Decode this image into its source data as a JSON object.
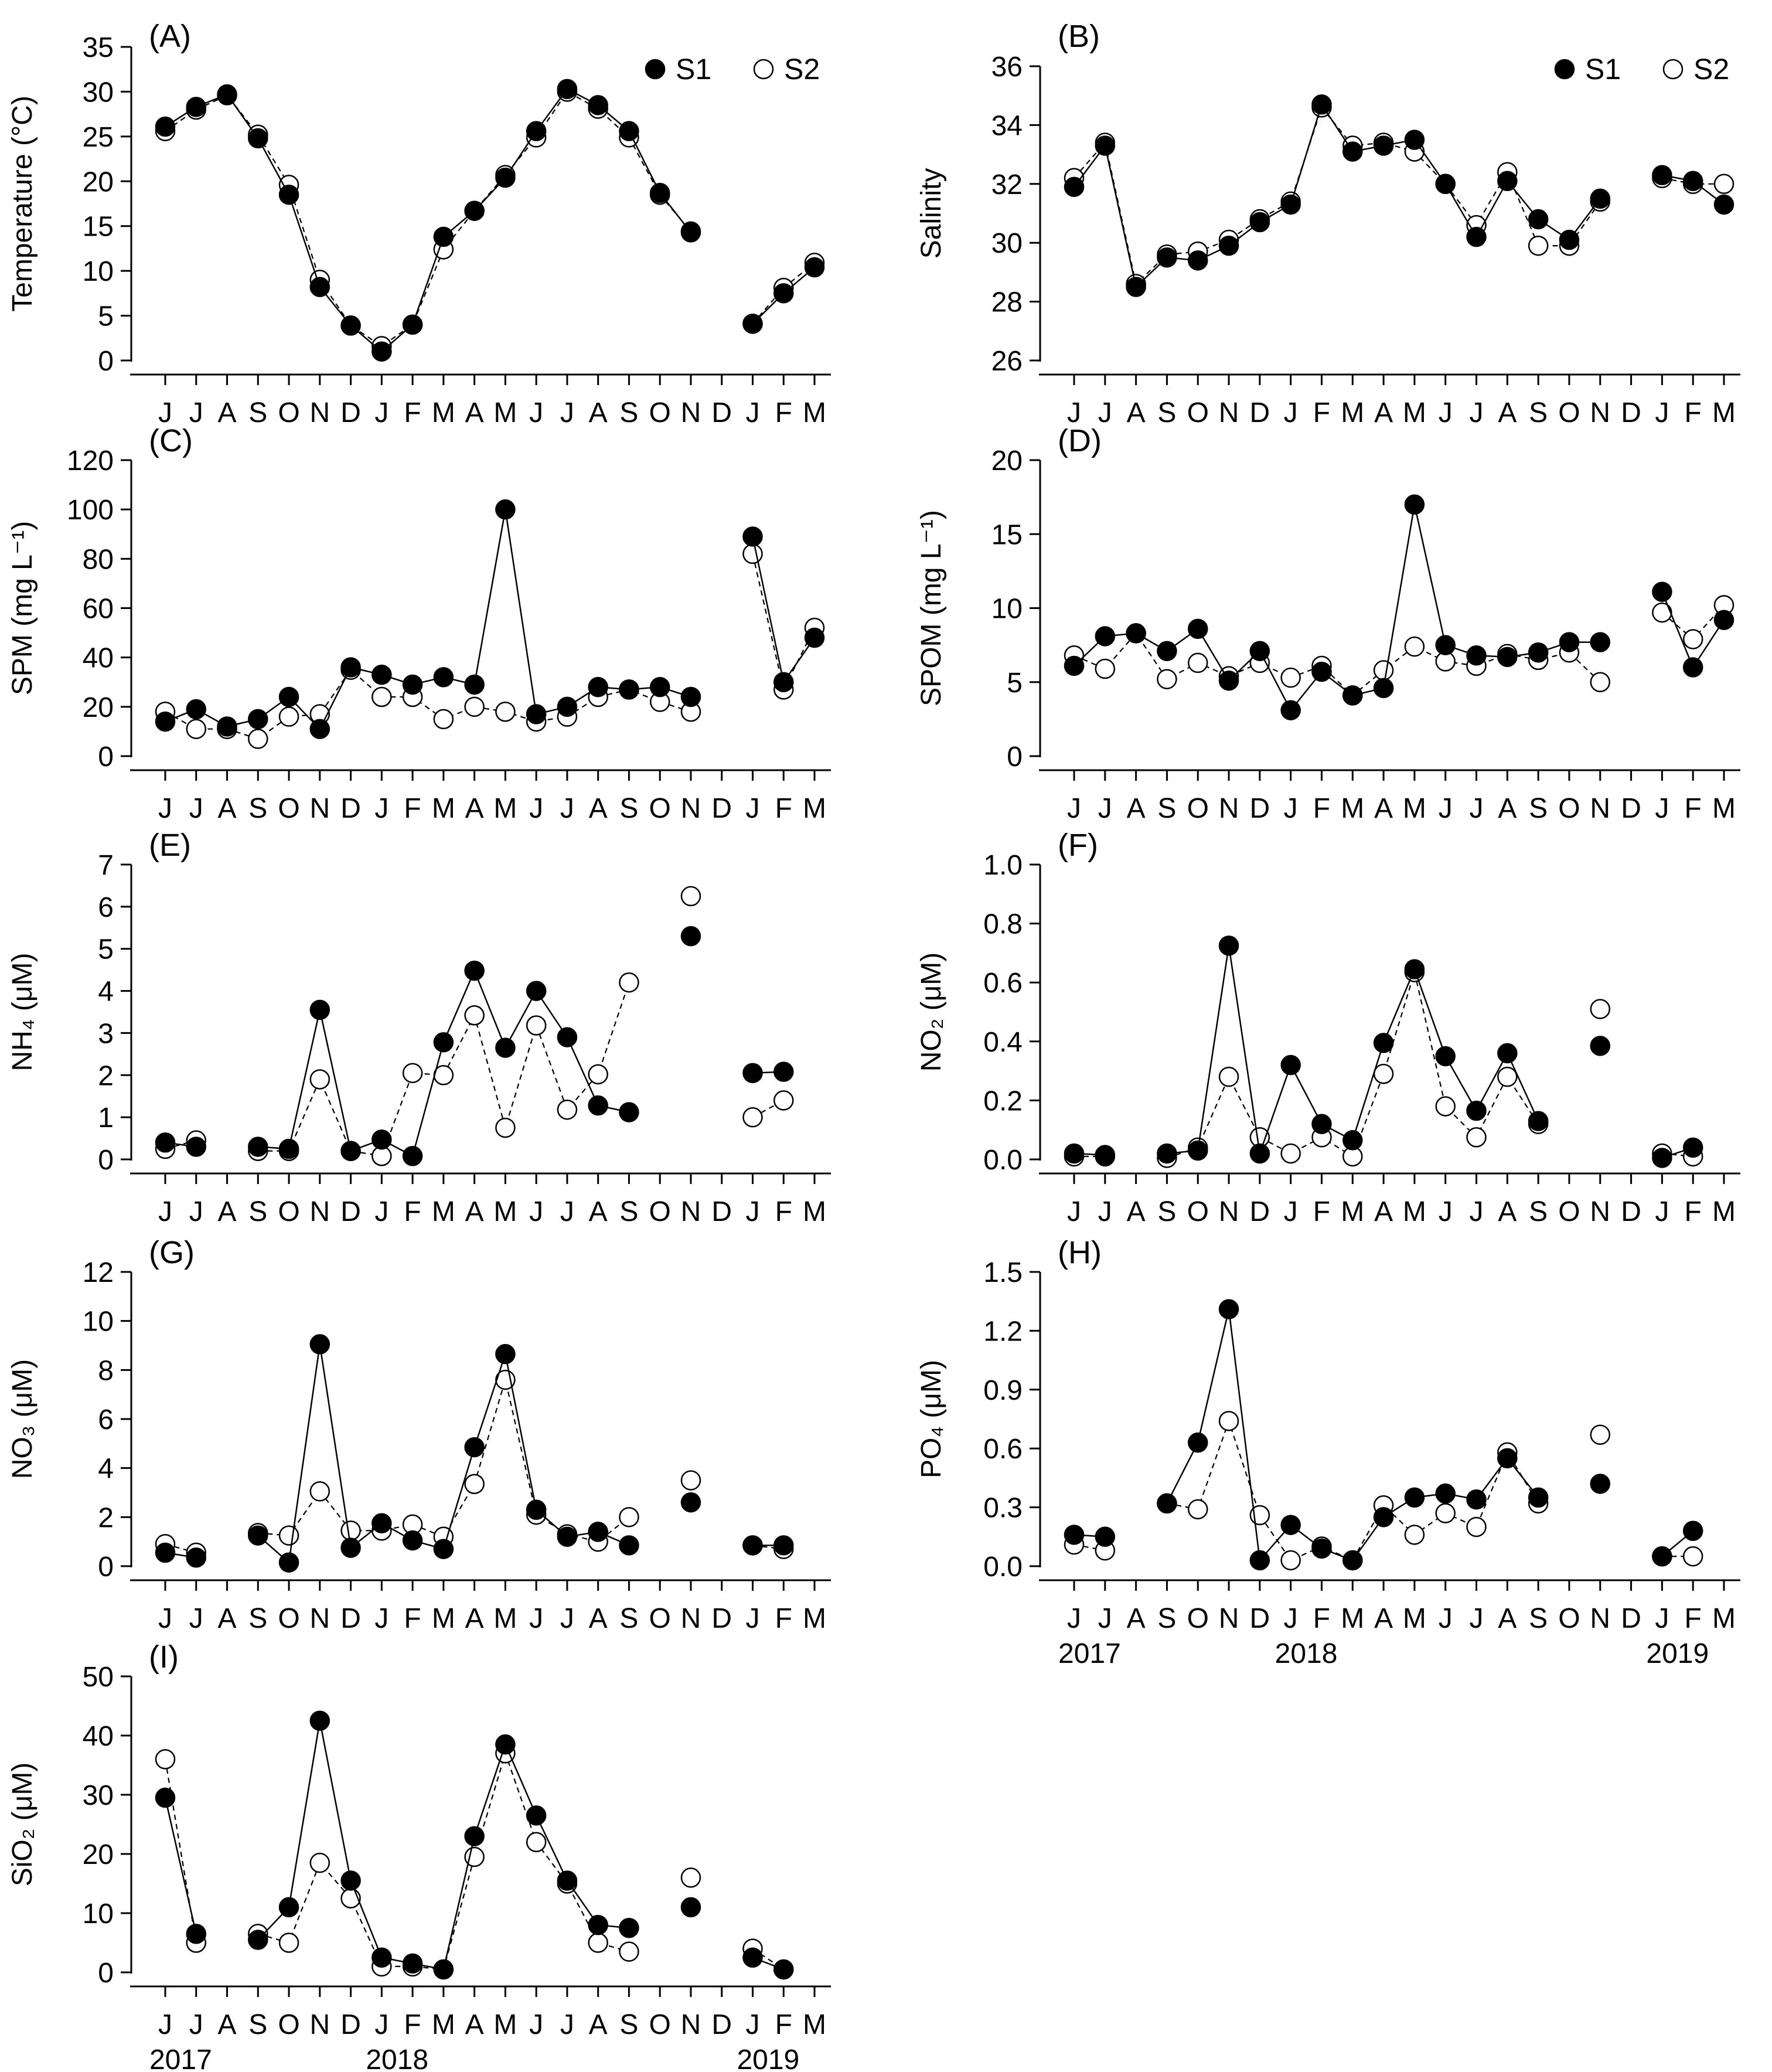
{
  "months": [
    "J",
    "J",
    "A",
    "S",
    "O",
    "N",
    "D",
    "J",
    "F",
    "M",
    "A",
    "M",
    "J",
    "J",
    "A",
    "S",
    "O",
    "N",
    "D",
    "J",
    "F",
    "M"
  ],
  "years": [
    {
      "label": "2017",
      "index": 0.5
    },
    {
      "label": "2018",
      "index": 7.5
    },
    {
      "label": "2019",
      "index": 19.5
    }
  ],
  "legend": {
    "s1": "S1",
    "s2": "S2"
  },
  "chart_data": [
    {
      "type": "line",
      "panel": "(A)",
      "ylabel": "Temperature (°C)",
      "ylim": [
        0,
        35
      ],
      "yticks": [
        0,
        5,
        10,
        15,
        20,
        25,
        30,
        35
      ],
      "legend": true,
      "series": [
        {
          "name": "S1",
          "values": [
            26.1,
            28.3,
            29.7,
            24.8,
            18.5,
            8.2,
            3.9,
            1.0,
            4.0,
            13.8,
            16.7,
            20.4,
            25.6,
            30.3,
            28.5,
            25.6,
            18.7,
            14.3,
            null,
            4.1,
            7.5,
            10.4
          ]
        },
        {
          "name": "S2",
          "values": [
            25.6,
            28.0,
            29.6,
            25.2,
            19.6,
            9.0,
            3.9,
            1.6,
            4.0,
            12.4,
            16.7,
            20.7,
            24.9,
            30.0,
            28.1,
            24.9,
            18.5,
            14.4,
            null,
            4.1,
            8.1,
            10.9
          ]
        }
      ]
    },
    {
      "type": "line",
      "panel": "(B)",
      "ylabel": "Salinity",
      "ylim": [
        26,
        36
      ],
      "yticks": [
        26,
        28,
        30,
        32,
        34,
        36
      ],
      "legend": true,
      "series": [
        {
          "name": "S1",
          "values": [
            31.9,
            33.3,
            28.5,
            29.5,
            29.4,
            29.9,
            30.7,
            31.3,
            34.7,
            33.1,
            33.3,
            33.5,
            32.0,
            30.2,
            32.1,
            30.8,
            30.1,
            31.5,
            null,
            32.3,
            32.1,
            31.3
          ]
        },
        {
          "name": "S2",
          "values": [
            32.2,
            33.4,
            28.6,
            29.6,
            29.7,
            30.1,
            30.8,
            31.4,
            34.6,
            33.3,
            33.4,
            33.1,
            32.0,
            30.6,
            32.4,
            29.9,
            29.9,
            31.4,
            null,
            32.2,
            32.0,
            32.0
          ]
        }
      ]
    },
    {
      "type": "line",
      "panel": "(C)",
      "ylabel": "SPM (mg L⁻¹)",
      "ylim": [
        0,
        120
      ],
      "yticks": [
        0,
        20,
        40,
        60,
        80,
        100,
        120
      ],
      "legend": false,
      "series": [
        {
          "name": "S1",
          "values": [
            14,
            19,
            12,
            15,
            24,
            11,
            36,
            33,
            29,
            32,
            29,
            100,
            17,
            20,
            28,
            27,
            28,
            24,
            null,
            89,
            30,
            48
          ]
        },
        {
          "name": "S2",
          "values": [
            18,
            11,
            11,
            7,
            16,
            17,
            35,
            24,
            24,
            15,
            20,
            18,
            14,
            16,
            24,
            27,
            22,
            18,
            null,
            82,
            27,
            52
          ]
        }
      ]
    },
    {
      "type": "line",
      "panel": "(D)",
      "ylabel": "SPOM (mg L⁻¹)",
      "ylim": [
        0,
        20
      ],
      "yticks": [
        0,
        5,
        10,
        15,
        20
      ],
      "legend": false,
      "series": [
        {
          "name": "S1",
          "values": [
            6.1,
            8.1,
            8.3,
            7.1,
            8.6,
            5.1,
            7.1,
            3.1,
            5.7,
            4.1,
            4.6,
            17.0,
            7.5,
            6.8,
            6.7,
            7.0,
            7.7,
            7.7,
            null,
            11.1,
            6.0,
            9.2
          ]
        },
        {
          "name": "S2",
          "values": [
            6.8,
            5.9,
            8.3,
            5.2,
            6.3,
            5.4,
            6.3,
            5.3,
            6.1,
            4.1,
            5.8,
            7.4,
            6.4,
            6.1,
            6.9,
            6.5,
            7.0,
            5.0,
            null,
            9.7,
            7.9,
            10.2
          ]
        }
      ]
    },
    {
      "type": "line",
      "panel": "(E)",
      "ylabel": "NH₄ (μM)",
      "ylim": [
        0,
        7
      ],
      "yticks": [
        0,
        1,
        2,
        3,
        4,
        5,
        6,
        7
      ],
      "legend": false,
      "series": [
        {
          "name": "S1",
          "values": [
            0.4,
            0.3,
            null,
            0.3,
            0.25,
            3.55,
            0.2,
            0.47,
            0.08,
            2.78,
            4.48,
            2.65,
            4.0,
            2.9,
            1.28,
            1.12,
            null,
            5.3,
            null,
            2.05,
            2.08,
            null
          ]
        },
        {
          "name": "S2",
          "values": [
            0.25,
            0.45,
            null,
            0.2,
            0.2,
            1.9,
            0.2,
            0.08,
            2.05,
            2.0,
            3.42,
            0.75,
            3.18,
            1.18,
            2.02,
            4.2,
            null,
            6.25,
            null,
            1.0,
            1.4,
            null
          ]
        }
      ]
    },
    {
      "type": "line",
      "panel": "(F)",
      "ylabel": "NO₂ (μM)",
      "ylim": [
        0,
        1.0
      ],
      "yticks": [
        0.0,
        0.2,
        0.4,
        0.6,
        0.8,
        1.0
      ],
      "legend": false,
      "series": [
        {
          "name": "S1",
          "values": [
            0.02,
            0.015,
            null,
            0.02,
            0.03,
            0.725,
            0.02,
            0.32,
            0.12,
            0.065,
            0.395,
            0.645,
            0.35,
            0.165,
            0.36,
            0.13,
            null,
            0.385,
            null,
            0.005,
            0.04,
            null
          ]
        },
        {
          "name": "S2",
          "values": [
            0.01,
            0.01,
            null,
            0.005,
            0.04,
            0.28,
            0.075,
            0.02,
            0.075,
            0.01,
            0.29,
            0.635,
            0.18,
            0.075,
            0.28,
            0.12,
            null,
            0.51,
            null,
            0.02,
            0.01,
            null
          ]
        }
      ]
    },
    {
      "type": "line",
      "panel": "(G)",
      "ylabel": "NO₃ (μM)",
      "ylim": [
        0,
        12
      ],
      "yticks": [
        0,
        2,
        4,
        6,
        8,
        10,
        12
      ],
      "legend": false,
      "series": [
        {
          "name": "S1",
          "values": [
            0.55,
            0.35,
            null,
            1.25,
            0.15,
            9.05,
            0.75,
            1.75,
            1.05,
            0.7,
            4.85,
            8.65,
            2.3,
            1.2,
            1.4,
            0.85,
            null,
            2.6,
            null,
            0.85,
            0.85,
            null
          ]
        },
        {
          "name": "S2",
          "values": [
            0.9,
            0.55,
            null,
            1.35,
            1.25,
            3.05,
            1.45,
            1.45,
            1.7,
            1.2,
            3.35,
            7.6,
            2.1,
            1.3,
            1.0,
            2.0,
            null,
            3.5,
            null,
            0.85,
            0.7,
            null
          ]
        }
      ]
    },
    {
      "type": "line",
      "panel": "(H)",
      "ylabel": "PO₄ (μM)",
      "ylim": [
        0,
        1.5
      ],
      "yticks": [
        0.0,
        0.3,
        0.6,
        0.9,
        1.2,
        1.5
      ],
      "legend": false,
      "series": [
        {
          "name": "S1",
          "values": [
            0.16,
            0.15,
            null,
            0.32,
            0.63,
            1.31,
            0.03,
            0.21,
            0.09,
            0.03,
            0.25,
            0.35,
            0.37,
            0.34,
            0.55,
            0.35,
            null,
            0.42,
            null,
            0.05,
            0.18,
            null
          ]
        },
        {
          "name": "S2",
          "values": [
            0.11,
            0.08,
            null,
            0.32,
            0.29,
            0.74,
            0.26,
            0.03,
            0.1,
            0.03,
            0.31,
            0.16,
            0.27,
            0.2,
            0.58,
            0.32,
            null,
            0.67,
            null,
            0.05,
            0.05,
            null
          ]
        }
      ]
    },
    {
      "type": "line",
      "panel": "(I)",
      "ylabel": "SiO₂ (μM)",
      "ylim": [
        0,
        50
      ],
      "yticks": [
        0,
        10,
        20,
        30,
        40,
        50
      ],
      "legend": false,
      "series": [
        {
          "name": "S1",
          "values": [
            29.5,
            6.5,
            null,
            5.5,
            11.0,
            42.5,
            15.5,
            2.5,
            1.5,
            0.5,
            23.0,
            38.5,
            26.5,
            15.5,
            8.0,
            7.5,
            null,
            11.0,
            null,
            2.5,
            0.5,
            null
          ]
        },
        {
          "name": "S2",
          "values": [
            36.0,
            5.0,
            null,
            6.5,
            5.0,
            18.5,
            12.5,
            1.0,
            1.0,
            0.5,
            19.5,
            37.0,
            22.0,
            15.0,
            5.0,
            3.5,
            null,
            16.0,
            null,
            4.0,
            0.5,
            null
          ]
        }
      ]
    }
  ]
}
